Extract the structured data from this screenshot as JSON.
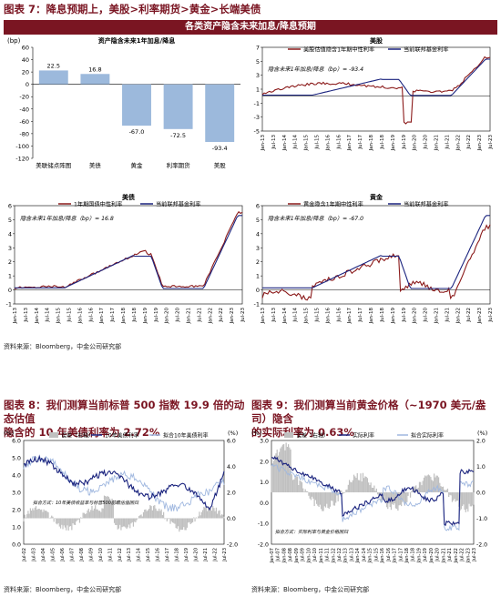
{
  "fig7": {
    "title": "图表 7：降息预期上，美股>利率期货>黄金>长端美债",
    "panel_header": "各类资产隐含未来加息/降息预期",
    "source": "资料来源：Bloomberg，中金公司研究部"
  },
  "fig8": {
    "title_line1": "图表 8：我们测算当前标普 500 指数 19.9 倍的动态估值",
    "title_line2": "隐含的 10 年美债利率为 2.72%",
    "source": "资料来源：Bloomberg，中金公司研究部"
  },
  "fig9": {
    "title_line1": "图表 9：我们测算当前黄金价格（~1970 美元/盎司）隐含",
    "title_line2": "的实际利率为 0.63%",
    "source": "资料来源：Bloomberg，中金公司研究部"
  },
  "colors": {
    "accent": "#7a1522",
    "navy": "#1a237e",
    "dark_red": "#8b1a1a",
    "bar_blue": "#9cb9dc",
    "gray": "#c0c0c0",
    "light_blue": "#9fb7df"
  },
  "chart_data": [
    {
      "type": "bar",
      "title": "资产隐含未来1年加息/降息",
      "yunit": "(bp)",
      "categories": [
        "美联储点阵图",
        "美债",
        "黄金",
        "利率期货",
        "美股"
      ],
      "values": [
        22.5,
        16.8,
        -67.0,
        -72.5,
        -93.4
      ],
      "data_labels": [
        "22.5",
        "16.8",
        "-67.0",
        "-72.5",
        "-93.4"
      ],
      "ylim": [
        -120,
        60
      ],
      "yticks": [
        "60",
        "40",
        "20",
        "0",
        "-20",
        "-40",
        "-60",
        "-80",
        "-100",
        "-120"
      ]
    },
    {
      "type": "line",
      "title": "美股",
      "series": [
        {
          "name": "美股估值隐含1年期中性利率"
        },
        {
          "name": "当前联邦基金利率"
        }
      ],
      "annotation": "隐含未来1年加息/降息（bp）= -93.4",
      "ylim": [
        -5,
        7
      ],
      "yticks": [
        "7",
        "5",
        "3",
        "1",
        "-1",
        "-3",
        "-5"
      ],
      "xticks": [
        "Jan-13",
        "Jul-13",
        "Jan-14",
        "Jul-14",
        "Jan-15",
        "Jul-15",
        "Jan-16",
        "Jul-16",
        "Jan-17",
        "Jul-17",
        "Jan-18",
        "Jul-18",
        "Jan-19",
        "Jul-19",
        "Jan-20",
        "Jul-20",
        "Jan-21",
        "Jul-21",
        "Jan-22",
        "Jul-22",
        "Jan-23",
        "Jul-23"
      ]
    },
    {
      "type": "line",
      "title": "美债",
      "series": [
        {
          "name": "1年期国债中性利率"
        },
        {
          "name": "当前联邦基金利率"
        }
      ],
      "annotation": "隐含未来1年加息/降息（bp）= 16.8",
      "ylim": [
        -1,
        6
      ],
      "yticks": [
        "6",
        "5",
        "4",
        "3",
        "2",
        "1",
        "0",
        "-1"
      ],
      "xticks": [
        "Jan-13",
        "Jul-13",
        "Jan-14",
        "Jul-14",
        "Jan-15",
        "Jul-15",
        "Jan-16",
        "Jul-16",
        "Jan-17",
        "Jul-17",
        "Jan-18",
        "Jul-18",
        "Jan-19",
        "Jul-19",
        "Jan-20",
        "Jul-20",
        "Jan-21",
        "Jul-21",
        "Jan-22",
        "Jul-22",
        "Jan-23",
        "Jul-23"
      ]
    },
    {
      "type": "line",
      "title": "黄金",
      "series": [
        {
          "name": "黄金隐含1年期中性利率"
        },
        {
          "name": "当前联邦基金利率"
        }
      ],
      "annotation": "隐含未来1年加息/降息（bp）= -67.0",
      "ylim": [
        -1,
        6
      ],
      "yticks": [
        "6",
        "5",
        "4",
        "3",
        "2",
        "1",
        "0",
        "-1"
      ],
      "xticks": [
        "Jan-13",
        "Jul-13",
        "Jan-14",
        "Jul-14",
        "Jan-15",
        "Jul-15",
        "Jan-16",
        "Jul-16",
        "Jan-17",
        "Jul-17",
        "Jan-18",
        "Jul-18",
        "Jan-19",
        "Jul-19",
        "Jan-20",
        "Jul-20",
        "Jan-21",
        "Jul-21",
        "Jan-22",
        "Jul-22",
        "Jan-23",
        "Jul-23"
      ]
    },
    {
      "type": "line",
      "series": [
        {
          "name": "误差（右轴）"
        },
        {
          "name": "10年美债利率"
        },
        {
          "name": "拟合10年美债利率"
        }
      ],
      "unit_left": "(%)",
      "unit_right": "(%)",
      "ylim_left": [
        0,
        6
      ],
      "ylim_right": [
        -2,
        6
      ],
      "yticks_left": [
        "6.0",
        "5.0",
        "4.0",
        "3.0",
        "2.0",
        "1.0",
        "0.0"
      ],
      "yticks_right": [
        "6.0",
        "4.0",
        "2.0",
        "0.0",
        "-2.0"
      ],
      "annotation": "拟合方式：10年美债收益率与标普500前瞻估值回归",
      "xticks": [
        "Jul-02",
        "Jul-03",
        "Jul-04",
        "Jul-05",
        "Jul-06",
        "Jul-07",
        "Jul-08",
        "Jul-09",
        "Jul-10",
        "Jul-11",
        "Jul-12",
        "Jul-13",
        "Jul-14",
        "Jul-15",
        "Jul-16",
        "Jul-17",
        "Jul-18",
        "Jul-19",
        "Jul-20",
        "Jul-21",
        "Jul-22",
        "Jul-23"
      ]
    },
    {
      "type": "line",
      "series": [
        {
          "name": "误差（右轴）"
        },
        {
          "name": "实际利率"
        },
        {
          "name": "拟合实际利率"
        }
      ],
      "unit_left": "(%)",
      "unit_right": "(%)",
      "ylim_left": [
        -2,
        3
      ],
      "ylim_right": [
        -2,
        2
      ],
      "yticks_left": [
        "3.0",
        "2.0",
        "1.0",
        "0.0",
        "-1.0",
        "-2.0"
      ],
      "yticks_right": [
        "2.0",
        "1.0",
        "0.0",
        "-1.0",
        "-2.0"
      ],
      "annotation": "拟合方式：实际利率与黄金价格回归",
      "xticks": [
        "Jan-07",
        "Jul-07",
        "Jan-08",
        "Jul-08",
        "Jan-09",
        "Jul-09",
        "Jan-10",
        "Jul-10",
        "Jan-11",
        "Jul-11",
        "Jan-12",
        "Jul-12",
        "Jan-13",
        "Jul-13",
        "Jan-14",
        "Jul-14",
        "Jan-15",
        "Jul-15",
        "Jan-16",
        "Jul-16",
        "Jan-17",
        "Jul-17",
        "Jan-18",
        "Jul-18",
        "Jan-19",
        "Jul-19",
        "Jan-20",
        "Jul-20",
        "Jan-21",
        "Jul-21",
        "Jan-22",
        "Jul-22",
        "Jan-23",
        "Jul-23"
      ]
    }
  ]
}
